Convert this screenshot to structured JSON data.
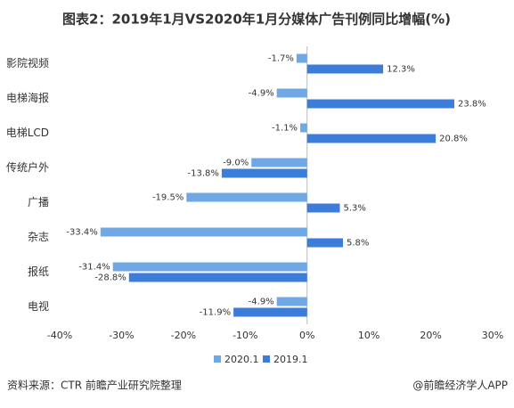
{
  "chart_data": {
    "type": "hbar",
    "title": "图表2：2019年1月VS2020年1月分媒体广告刊例同比增幅(%)",
    "source": "资料来源：CTR 前瞻产业研究院整理",
    "watermark": "@前瞻经济学人APP",
    "categories": [
      "影院视频",
      "电梯海报",
      "电梯LCD",
      "传统户外",
      "广播",
      "杂志",
      "报纸",
      "电视"
    ],
    "series": [
      {
        "name": "2020.1",
        "color": "#6fa8e4",
        "values": [
          -1.7,
          -4.9,
          -1.1,
          -9.0,
          -19.5,
          -33.4,
          -31.4,
          -4.9
        ],
        "value_labels": [
          "-1.7%",
          "-4.9%",
          "-1.1%",
          "-9.0%",
          "-19.5%",
          "-33.4%",
          "-31.4%",
          "-4.9%"
        ]
      },
      {
        "name": "2019.1",
        "color": "#3b7dd8",
        "values": [
          12.3,
          23.8,
          20.8,
          -13.8,
          5.3,
          5.8,
          -28.8,
          -11.9
        ],
        "value_labels": [
          "12.3%",
          "23.8%",
          "20.8%",
          "-13.8%",
          "5.3%",
          "5.8%",
          "-28.8%",
          "-11.9%"
        ]
      }
    ],
    "xlim": [
      -40,
      30
    ],
    "xticks": [
      {
        "value": -40,
        "label": "-40%"
      },
      {
        "value": -30,
        "label": "-30%"
      },
      {
        "value": -20,
        "label": "-20%"
      },
      {
        "value": -10,
        "label": "-10%"
      },
      {
        "value": 0,
        "label": "0%"
      },
      {
        "value": 10,
        "label": "10%"
      },
      {
        "value": 20,
        "label": "20%"
      },
      {
        "value": 30,
        "label": "30%"
      }
    ],
    "legend": "bottom"
  }
}
